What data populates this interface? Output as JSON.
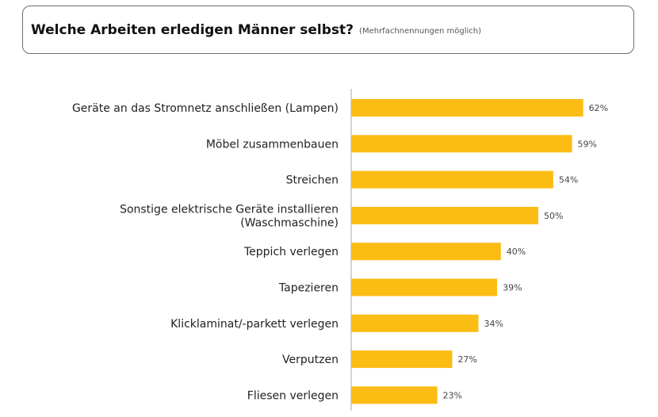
{
  "header": {
    "title": "Welche Arbeiten erledigen Männer selbst?",
    "subtitle": "(Mehrfachnennungen möglich)"
  },
  "colors": {
    "bar": "#fbbc14",
    "axis": "#aaaaaa"
  },
  "chart_data": {
    "type": "bar",
    "orientation": "horizontal",
    "categories": [
      [
        "Geräte an das Stromnetz anschließen (Lampen)"
      ],
      [
        "Möbel zusammenbauen"
      ],
      [
        "Streichen"
      ],
      [
        "Sonstige elektrische Geräte installieren",
        "(Waschmaschine)"
      ],
      [
        "Teppich verlegen"
      ],
      [
        "Tapezieren"
      ],
      [
        "Klicklaminat/-parkett verlegen"
      ],
      [
        "Verputzen"
      ],
      [
        "Fliesen verlegen"
      ]
    ],
    "values": [
      62,
      59,
      54,
      50,
      40,
      39,
      34,
      27,
      23
    ],
    "value_labels": [
      "62%",
      "59%",
      "54%",
      "50%",
      "40%",
      "39%",
      "34%",
      "27%",
      "23%"
    ],
    "xlim": [
      0,
      100
    ],
    "grid": false,
    "legend": "none"
  }
}
